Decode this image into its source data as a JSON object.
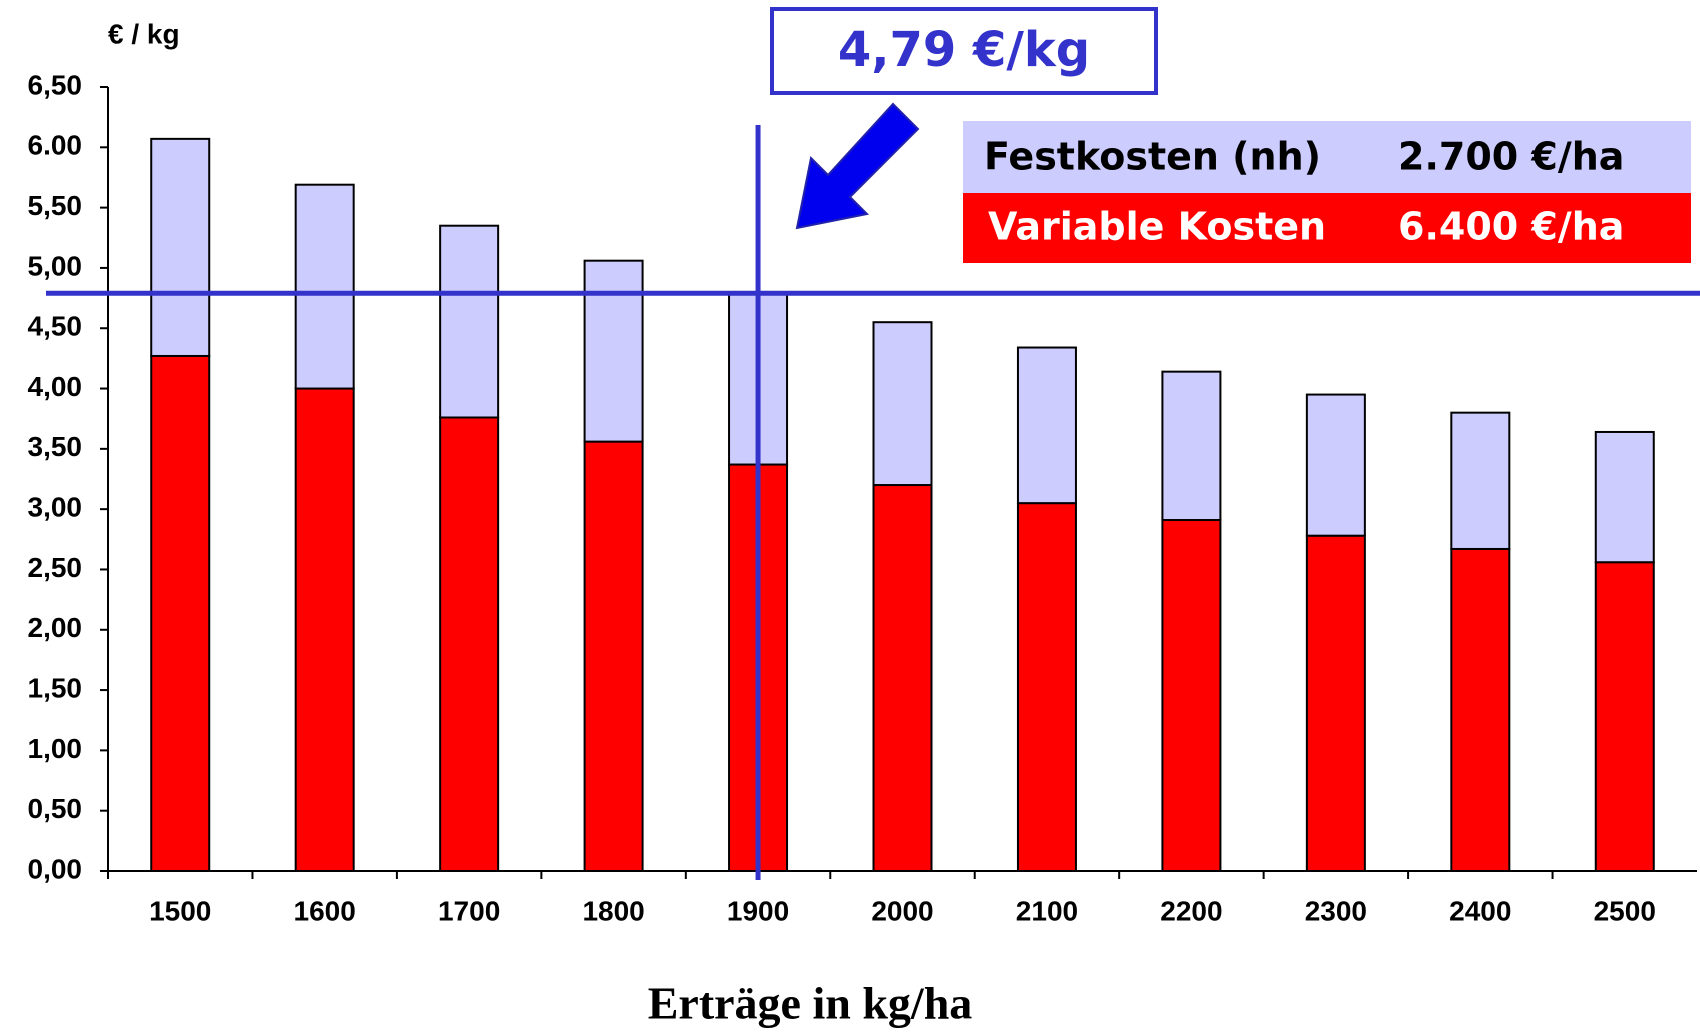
{
  "chart_data": {
    "type": "stacked-bar",
    "ylabel": "€ / kg",
    "xlabel": "Erträge in kg/ha",
    "categories": [
      1500,
      1600,
      1700,
      1800,
      1900,
      2000,
      2100,
      2200,
      2300,
      2400,
      2500
    ],
    "series": [
      {
        "name": "Variable Kosten",
        "cost": "6.400 €/ha",
        "color": "#ff0000",
        "values": [
          4.27,
          4.0,
          3.76,
          3.56,
          3.37,
          3.2,
          3.05,
          2.91,
          2.78,
          2.67,
          2.56
        ]
      },
      {
        "name": "Festkosten (nh)",
        "cost": "2.700 €/ha",
        "color": "#ccccff",
        "values": [
          1.8,
          1.69,
          1.59,
          1.5,
          1.42,
          1.35,
          1.29,
          1.23,
          1.17,
          1.13,
          1.08
        ]
      }
    ],
    "ylim": [
      0,
      6.5
    ],
    "yticks": [
      {
        "value": 0,
        "label": "0,00"
      },
      {
        "value": 0.5,
        "label": "0,50"
      },
      {
        "value": 1,
        "label": "1,00"
      },
      {
        "value": 1.5,
        "label": "1,50"
      },
      {
        "value": 2,
        "label": "2,00"
      },
      {
        "value": 2.5,
        "label": "2,50"
      },
      {
        "value": 3,
        "label": "3,00"
      },
      {
        "value": 3.5,
        "label": "3,50"
      },
      {
        "value": 4,
        "label": "4,00"
      },
      {
        "value": 4.5,
        "label": "4,50"
      },
      {
        "value": 5,
        "label": "5,00"
      },
      {
        "value": 5.5,
        "label": "5,50"
      },
      {
        "value": 6,
        "label": "6.00"
      },
      {
        "value": 6.5,
        "label": "6,50"
      }
    ],
    "reference": {
      "value": 4.79,
      "label": "4,79 €/kg",
      "category": 1900
    }
  }
}
